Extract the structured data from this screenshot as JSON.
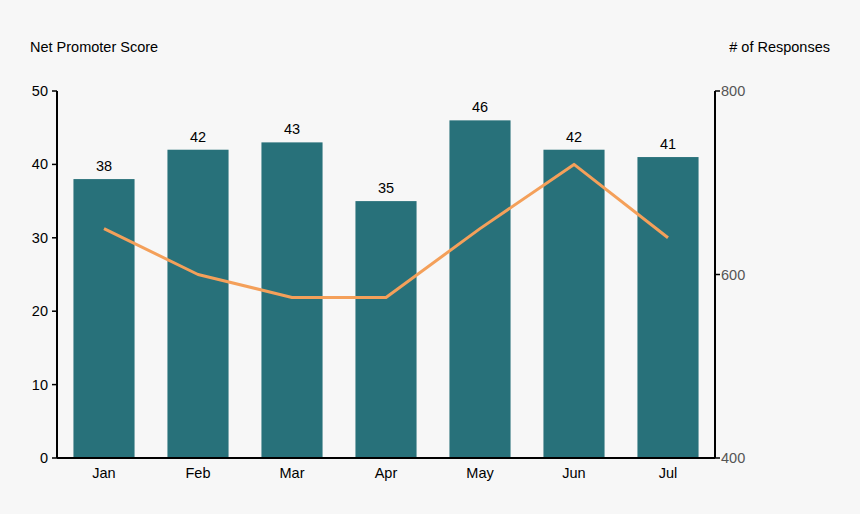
{
  "chart_data": {
    "type": "bar",
    "y_label": "Net Promoter Score",
    "y2_label": "# of Responses",
    "categories": [
      "Jan",
      "Feb",
      "Mar",
      "Apr",
      "May",
      "Jun",
      "Jul"
    ],
    "series": [
      {
        "type": "bar",
        "color": "#28717a",
        "data_labels": true,
        "values": [
          38,
          42,
          43,
          35,
          46,
          42,
          41
        ]
      },
      {
        "type": "line",
        "color": "#f4a05a",
        "axis": "y2",
        "values": [
          650,
          600,
          575,
          575,
          650,
          720,
          640
        ]
      }
    ],
    "ylim": [
      0,
      50
    ],
    "yticks": [
      0,
      10,
      20,
      30,
      40,
      50
    ],
    "y2lim": [
      400,
      800
    ],
    "y2ticks": [
      400,
      600,
      800
    ],
    "grid": false
  }
}
